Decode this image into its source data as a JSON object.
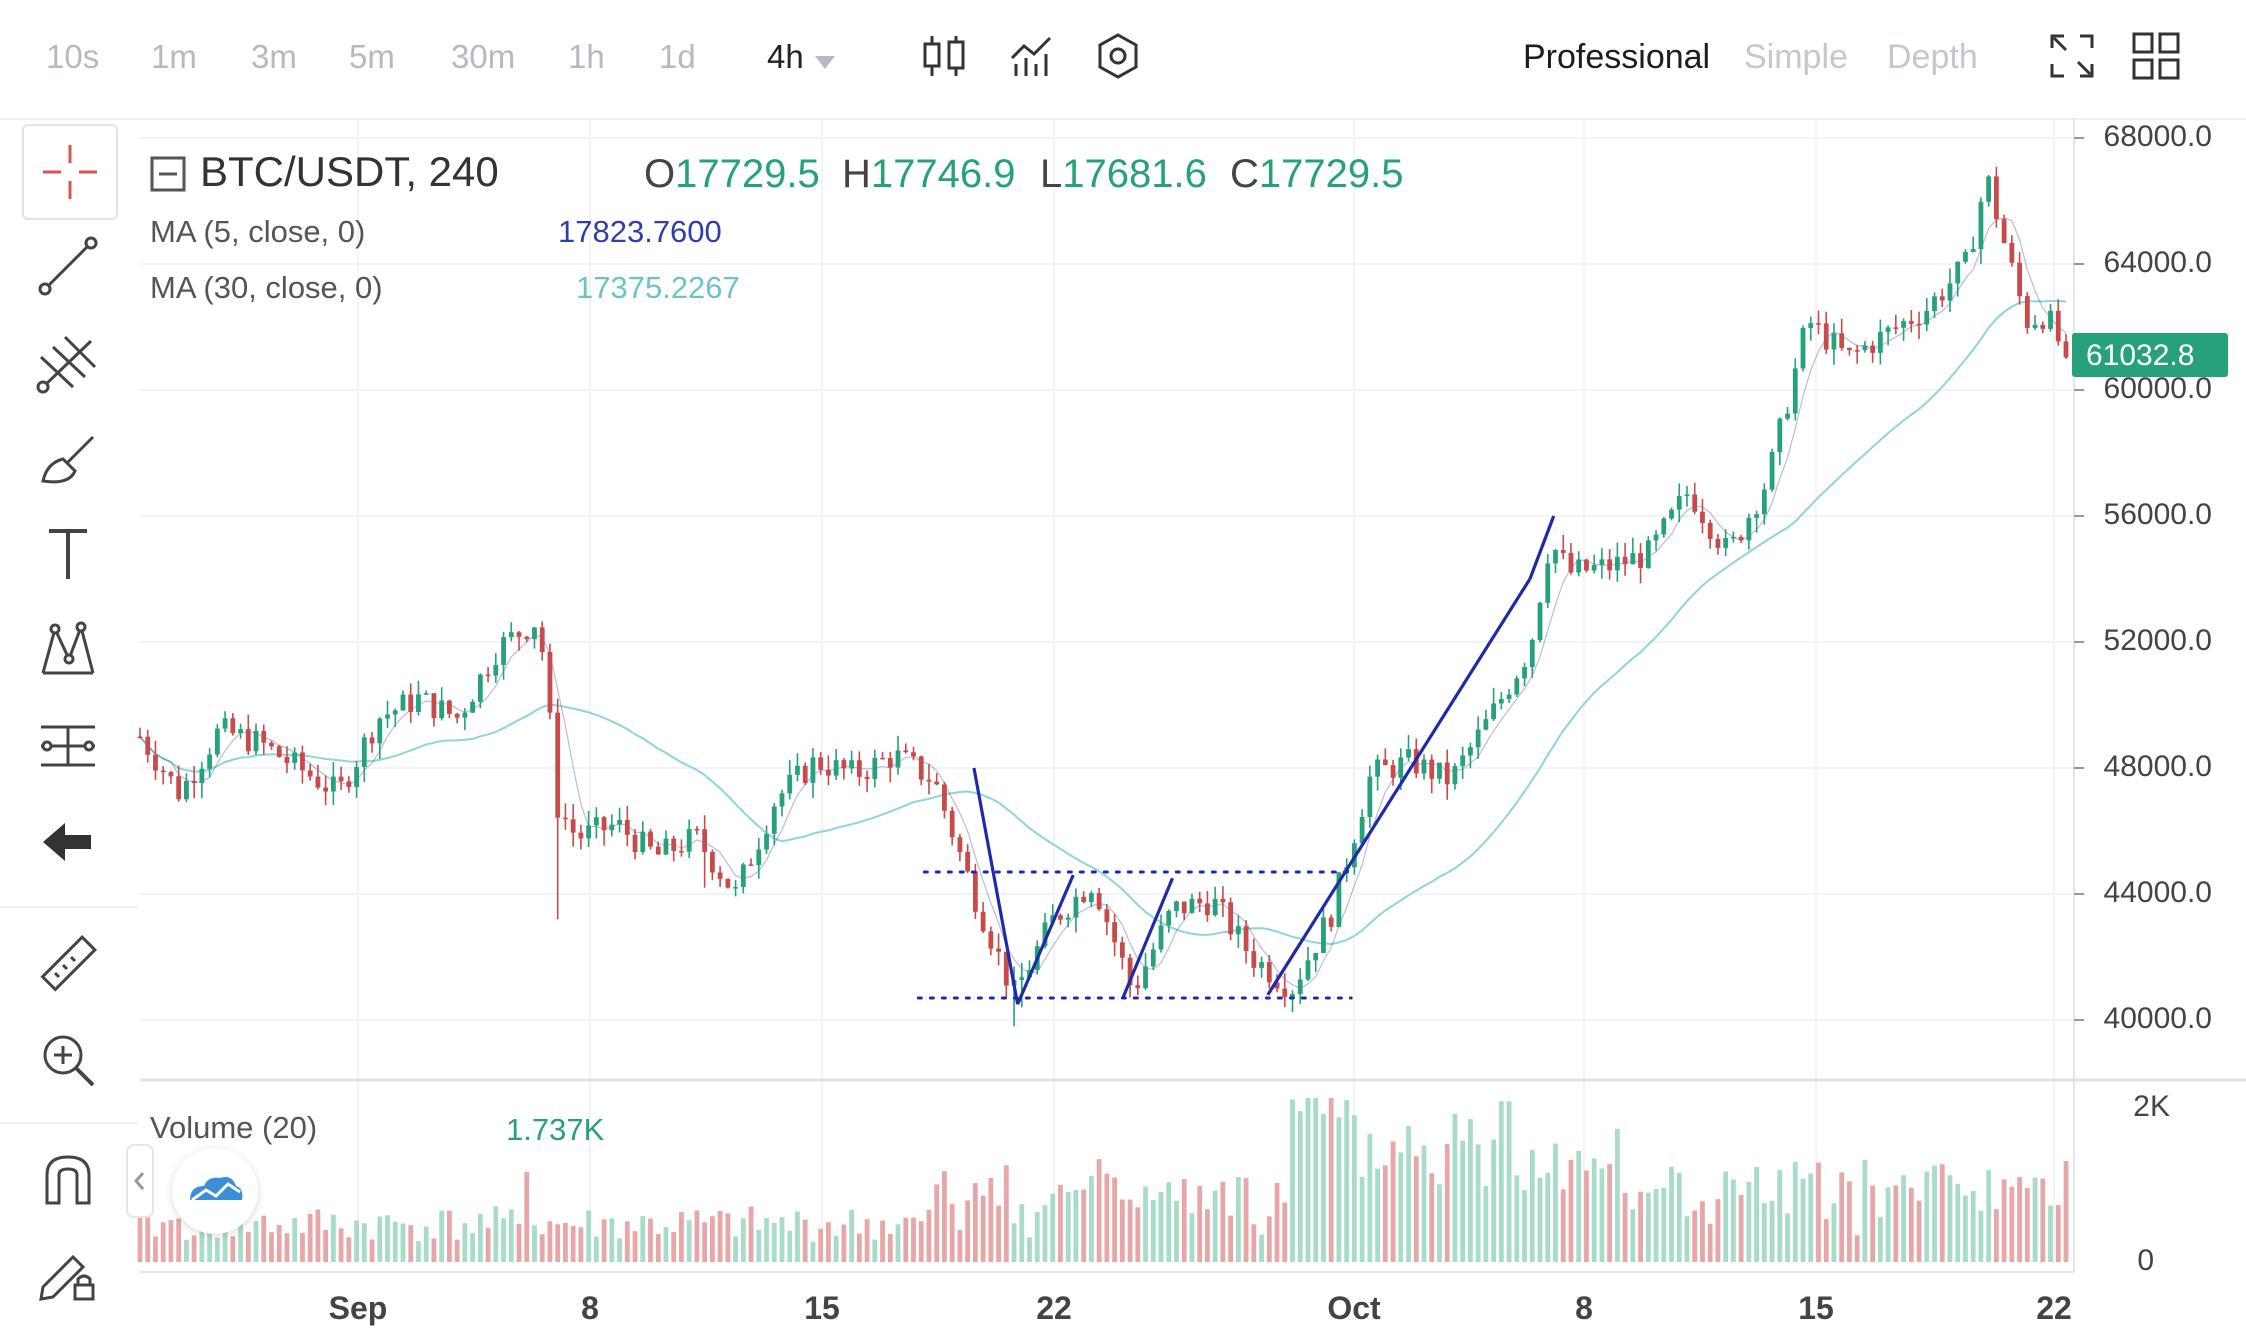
{
  "toolbar": {
    "timeframes": [
      "10s",
      "1m",
      "3m",
      "5m",
      "30m",
      "1h",
      "1d",
      "4h"
    ],
    "active_timeframe": "4h",
    "views": [
      "Professional",
      "Simple",
      "Depth"
    ],
    "active_view": "Professional"
  },
  "legend": {
    "symbol": "BTC/USDT, 240",
    "open_label": "O",
    "open": "17729.5",
    "high_label": "H",
    "high": "17746.9",
    "low_label": "L",
    "low": "17681.6",
    "close_label": "C",
    "close": "17729.5",
    "ma5_label": "MA (5, close, 0)",
    "ma5_value": "17823.7600",
    "ma30_label": "MA (30, close, 0)",
    "ma30_value": "17375.2267",
    "volume_label": "Volume (20)",
    "volume_value": "1.737K"
  },
  "sidebar": {
    "tools": [
      "crosshair",
      "trend-line",
      "fib-lines",
      "brush",
      "text",
      "pattern",
      "measure",
      "back-arrow",
      "ruler",
      "zoom-in",
      "magnet",
      "lock-pencil"
    ]
  },
  "colors": {
    "up": "#26a17b",
    "up_volume": "#a8dcc8",
    "down": "#c84b4b",
    "down_volume": "#e8a7a7",
    "ma5": "#2f3fa8",
    "ma30": "#8ed4dc",
    "annotation": "#1f2aa8",
    "price_badge": "#26a17b"
  },
  "chart_data": {
    "type": "candlestick",
    "x_labels": [
      "Sep",
      "8",
      "15",
      "22",
      "Oct",
      "8",
      "15",
      "22"
    ],
    "price_axis": [
      "68000.0",
      "64000.0",
      "60000.0",
      "56000.0",
      "52000.0",
      "48000.0",
      "44000.0",
      "40000.0"
    ],
    "volume_axis": [
      "2K",
      "0"
    ],
    "ylim": [
      38000,
      68800
    ],
    "current_price": "61032.8",
    "close_path": [
      {
        "t": 0,
        "p": 49000
      },
      {
        "t": 2,
        "p": 47200
      },
      {
        "t": 4,
        "p": 49200
      },
      {
        "t": 6,
        "p": 48800
      },
      {
        "t": 8,
        "p": 48000
      },
      {
        "t": 10,
        "p": 47200
      },
      {
        "t": 12,
        "p": 49600
      },
      {
        "t": 14,
        "p": 50200
      },
      {
        "t": 16,
        "p": 49600
      },
      {
        "t": 18,
        "p": 51800
      },
      {
        "t": 20,
        "p": 52700
      },
      {
        "t": 20.4,
        "p": 51200
      },
      {
        "t": 21,
        "p": 46800
      },
      {
        "t": 22,
        "p": 45800
      },
      {
        "t": 24,
        "p": 46200
      },
      {
        "t": 26,
        "p": 45200
      },
      {
        "t": 28,
        "p": 45800
      },
      {
        "t": 30,
        "p": 44000
      },
      {
        "t": 32,
        "p": 47000
      },
      {
        "t": 34,
        "p": 48200
      },
      {
        "t": 36,
        "p": 47800
      },
      {
        "t": 38,
        "p": 48400
      },
      {
        "t": 40,
        "p": 47600
      },
      {
        "t": 42,
        "p": 44000
      },
      {
        "t": 44,
        "p": 40800
      },
      {
        "t": 46,
        "p": 43200
      },
      {
        "t": 48,
        "p": 44400
      },
      {
        "t": 50,
        "p": 40900
      },
      {
        "t": 52,
        "p": 43500
      },
      {
        "t": 54,
        "p": 43800
      },
      {
        "t": 56,
        "p": 42000
      },
      {
        "t": 58,
        "p": 41000
      },
      {
        "t": 60,
        "p": 43400
      },
      {
        "t": 62,
        "p": 47800
      },
      {
        "t": 64,
        "p": 48200
      },
      {
        "t": 66,
        "p": 47600
      },
      {
        "t": 68,
        "p": 49600
      },
      {
        "t": 70,
        "p": 51800
      },
      {
        "t": 71,
        "p": 55200
      },
      {
        "t": 72,
        "p": 54200
      },
      {
        "t": 74,
        "p": 54400
      },
      {
        "t": 76,
        "p": 54800
      },
      {
        "t": 78,
        "p": 56800
      },
      {
        "t": 80,
        "p": 54800
      },
      {
        "t": 82,
        "p": 57200
      },
      {
        "t": 84,
        "p": 62200
      },
      {
        "t": 86,
        "p": 61000
      },
      {
        "t": 88,
        "p": 61800
      },
      {
        "t": 90,
        "p": 62600
      },
      {
        "t": 92,
        "p": 64000
      },
      {
        "t": 93,
        "p": 66800
      },
      {
        "t": 94,
        "p": 64400
      },
      {
        "t": 95,
        "p": 62200
      },
      {
        "t": 96,
        "p": 62400
      },
      {
        "t": 97,
        "p": 61032.8
      }
    ],
    "annotations": {
      "resistance": {
        "t_start": 39.5,
        "t_end": 61,
        "price": 44700
      },
      "support": {
        "t_start": 39.2,
        "t_end": 61,
        "price": 40700
      },
      "trend_lines": [
        [
          {
            "t": 42,
            "p": 48000
          },
          {
            "t": 44.2,
            "p": 40500
          }
        ],
        [
          {
            "t": 44.2,
            "p": 40500
          },
          {
            "t": 47,
            "p": 44600
          }
        ],
        [
          {
            "t": 49.5,
            "p": 40700
          },
          {
            "t": 52,
            "p": 44500
          }
        ],
        [
          {
            "t": 56.8,
            "p": 40800
          },
          {
            "t": 70,
            "p": 54000
          }
        ],
        [
          {
            "t": 70,
            "p": 54000
          },
          {
            "t": 71.2,
            "p": 56000
          }
        ]
      ]
    }
  }
}
